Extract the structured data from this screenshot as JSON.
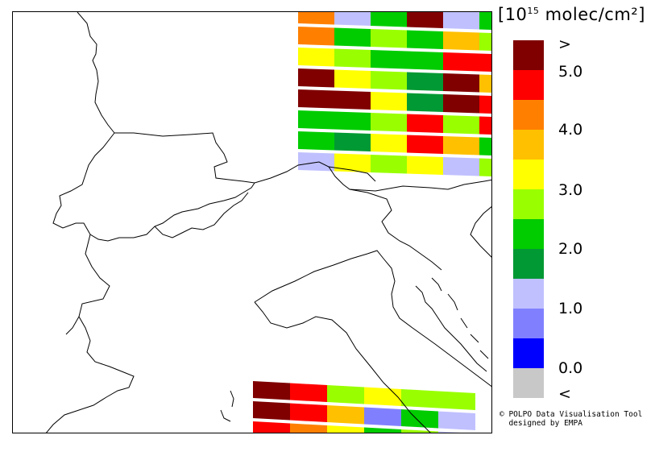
{
  "legend": {
    "unit_prefix": "[10",
    "unit_exponent": "15",
    "unit_suffix": " molec/cm²]",
    "colors": [
      "#800000",
      "#ff0000",
      "#ff8000",
      "#ffc000",
      "#ffff00",
      "#99ff00",
      "#00cc00",
      "#009933",
      "#c0c0ff",
      "#8080ff",
      "#0000ff",
      "#c8c8c8"
    ],
    "labels": [
      ">",
      "5.0",
      "4.0",
      "3.0",
      "2.0",
      "1.0",
      "0.0",
      "<"
    ]
  },
  "credit": {
    "line1": "© POLPO Data Visualisation Tool",
    "line2": "designed by EMPA"
  },
  "swaths": {
    "top": [
      [
        "#ff8000",
        "#c0c0ff",
        "#00cc00",
        "#800000",
        "#c0c0ff",
        "#00cc00"
      ],
      [
        "#ff8000",
        "#00cc00",
        "#99ff00",
        "#00cc00",
        "#ffc000",
        "#99ff00"
      ],
      [
        "#ffff00",
        "#99ff00",
        "#00cc00",
        "#00cc00",
        "#ff0000",
        "#ff0000"
      ],
      [
        "#800000",
        "#ffff00",
        "#99ff00",
        "#009933",
        "#800000",
        "#ffc000"
      ],
      [
        "#800000",
        "#800000",
        "#ffff00",
        "#009933",
        "#800000",
        "#ff0000"
      ],
      [
        "#00cc00",
        "#00cc00",
        "#99ff00",
        "#ff0000",
        "#99ff00",
        "#ff0000"
      ],
      [
        "#00cc00",
        "#009933",
        "#ffff00",
        "#ff0000",
        "#ffc000",
        "#00cc00"
      ],
      [
        "#c0c0ff",
        "#ffff00",
        "#99ff00",
        "#ffff00",
        "#c0c0ff",
        "#99ff00"
      ]
    ],
    "bottom": [
      [
        "#800000",
        "#ff0000",
        "#99ff00",
        "#ffff00",
        "#99ff00",
        "#99ff00"
      ],
      [
        "#800000",
        "#ff0000",
        "#ffc000",
        "#8080ff",
        "#00cc00",
        "#c0c0ff"
      ],
      [
        "#ff0000",
        "#ff8000",
        "#ffff00",
        "#00cc00",
        "#99ff00",
        "#c0c0ff"
      ]
    ]
  }
}
